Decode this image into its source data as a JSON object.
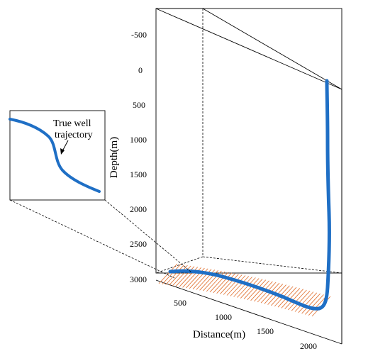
{
  "depth_axis": {
    "title": "Depth(m)",
    "ticks": [
      "-500",
      "0",
      "500",
      "1000",
      "1500",
      "2000",
      "2500",
      "3000"
    ]
  },
  "distance_axis": {
    "title": "Distance(m)",
    "ticks": [
      "500",
      "1000",
      "1500",
      "2000"
    ]
  },
  "callout": {
    "line1": "True well",
    "line2": "trajectory"
  },
  "colors": {
    "trajectory": "#1f6fc5",
    "hatch": "#e2773a",
    "box": "#000000"
  }
}
